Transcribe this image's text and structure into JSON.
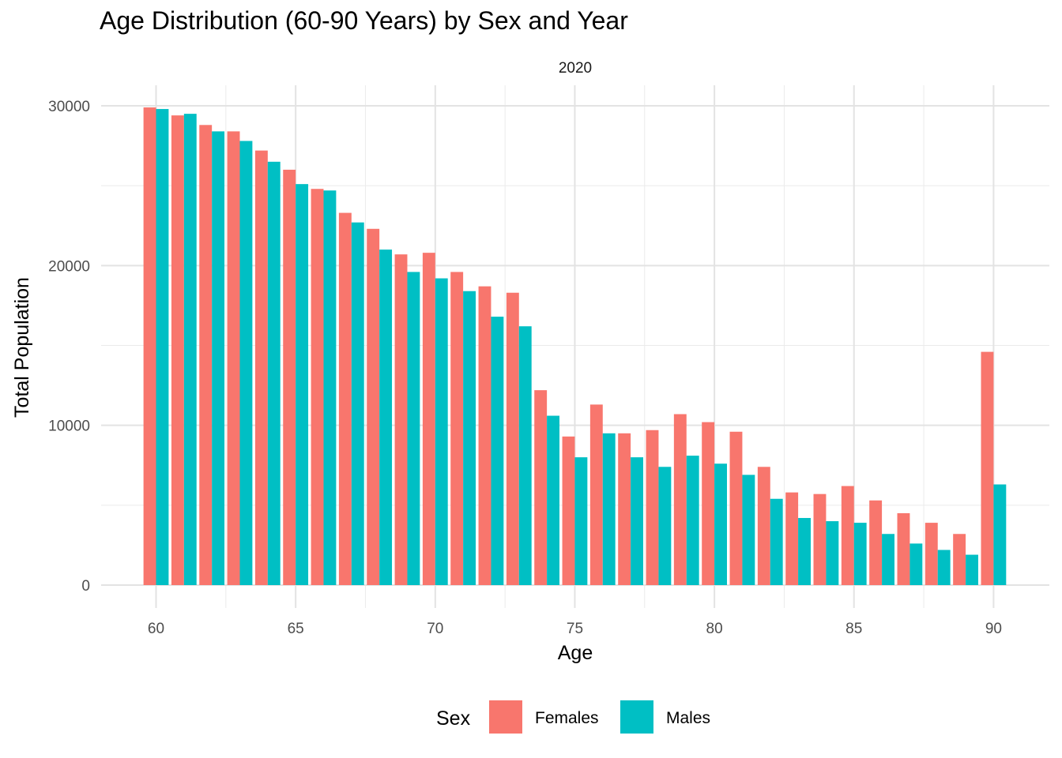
{
  "chart_data": {
    "type": "bar",
    "title": "Age Distribution (60-90 Years) by Sex and Year",
    "facet_label": "2020",
    "xlabel": "Age",
    "ylabel": "Total Population",
    "x_ticks": [
      "60",
      "65",
      "70",
      "75",
      "80",
      "85",
      "90"
    ],
    "y_ticks": [
      "0",
      "10000",
      "20000",
      "30000"
    ],
    "ylim": [
      0,
      31000
    ],
    "xlim": [
      59.5,
      90.5
    ],
    "grid": true,
    "legend_title": "Sex",
    "legend_position": "bottom",
    "categories": [
      60,
      61,
      62,
      63,
      64,
      65,
      66,
      67,
      68,
      69,
      70,
      71,
      72,
      73,
      74,
      75,
      76,
      77,
      78,
      79,
      80,
      81,
      82,
      83,
      84,
      85,
      86,
      87,
      88,
      89,
      90
    ],
    "series": [
      {
        "name": "Females",
        "color": "#F8766D",
        "values": [
          29900,
          29400,
          28800,
          28400,
          27200,
          26000,
          24800,
          23300,
          22300,
          20700,
          20800,
          19600,
          18700,
          18300,
          12200,
          9300,
          11300,
          9500,
          9700,
          10700,
          10200,
          9600,
          7400,
          5800,
          5700,
          6200,
          5300,
          4500,
          3900,
          3200,
          14600
        ]
      },
      {
        "name": "Males",
        "color": "#00BFC4",
        "values": [
          29800,
          29500,
          28400,
          27800,
          26500,
          25100,
          24700,
          22700,
          21000,
          19600,
          19200,
          18400,
          16800,
          16200,
          10600,
          8000,
          9500,
          8000,
          7400,
          8100,
          7600,
          6900,
          5400,
          4200,
          4000,
          3900,
          3200,
          2600,
          2200,
          1900,
          6300
        ]
      }
    ]
  }
}
